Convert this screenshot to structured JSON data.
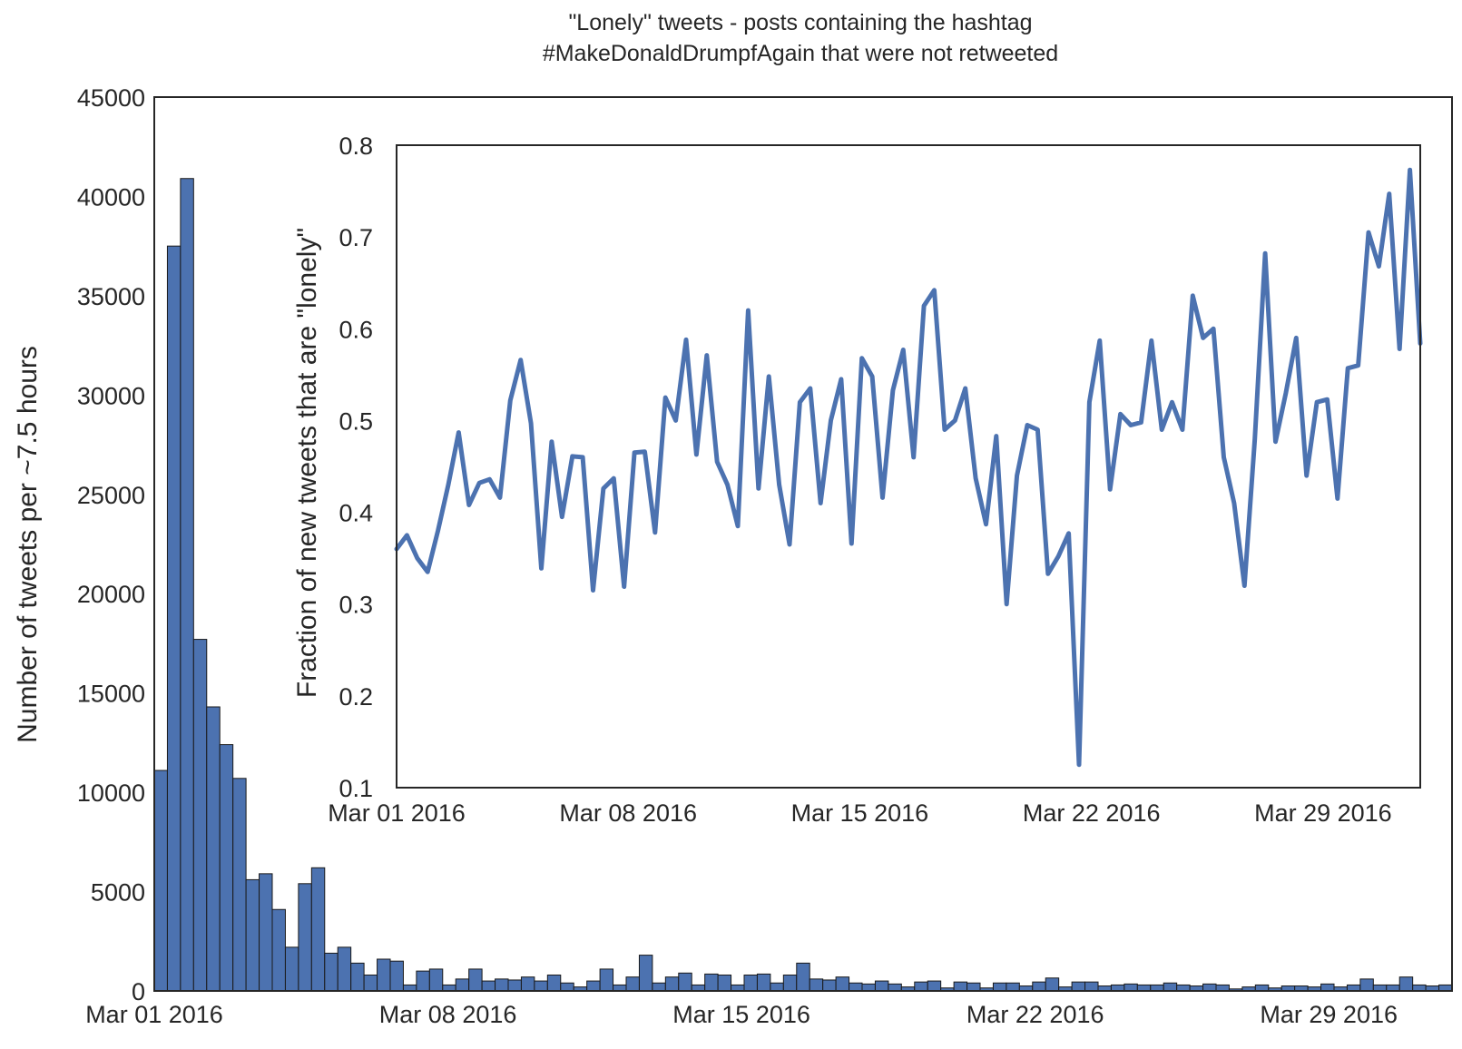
{
  "title_line1": "\"Lonely\" tweets - posts containing the hashtag",
  "title_line2": "#MakeDonaldDrumpfAgain that were not retweeted",
  "chart_data": [
    {
      "type": "bar",
      "role": "histogram",
      "ylabel": "Number of tweets per ~7.5 hours",
      "ylim": [
        0,
        45000
      ],
      "yticks": [
        "0",
        "5000",
        "10000",
        "15000",
        "20000",
        "25000",
        "30000",
        "35000",
        "40000",
        "45000"
      ],
      "xticks": [
        "Mar 01 2016",
        "Mar 08 2016",
        "Mar 15 2016",
        "Mar 22 2016",
        "Mar 29 2016"
      ],
      "bar_color": "#4c72b0",
      "values": [
        11100,
        37500,
        40900,
        17700,
        14300,
        12400,
        10700,
        5600,
        5900,
        4100,
        2200,
        5400,
        6200,
        1900,
        2200,
        1400,
        800,
        1600,
        1500,
        300,
        1000,
        1100,
        300,
        600,
        1100,
        500,
        600,
        550,
        700,
        500,
        800,
        400,
        200,
        500,
        1100,
        300,
        700,
        1800,
        400,
        700,
        900,
        300,
        850,
        800,
        300,
        800,
        850,
        400,
        800,
        1400,
        600,
        550,
        700,
        400,
        350,
        500,
        350,
        200,
        450,
        500,
        150,
        450,
        400,
        150,
        400,
        400,
        250,
        450,
        650,
        200,
        450,
        450,
        250,
        300,
        350,
        300,
        300,
        400,
        300,
        250,
        350,
        300,
        100,
        200,
        300,
        150,
        250,
        250,
        200,
        350,
        200,
        300,
        600,
        300,
        300,
        700,
        300,
        250,
        300
      ]
    },
    {
      "type": "line",
      "role": "inset",
      "ylabel": "Fraction of new tweets that are \"lonely\"",
      "ylim": [
        0.1,
        0.8
      ],
      "yticks": [
        "0.1",
        "0.2",
        "0.3",
        "0.4",
        "0.5",
        "0.6",
        "0.7",
        "0.8"
      ],
      "xticks": [
        "Mar 01 2016",
        "Mar 08 2016",
        "Mar 15 2016",
        "Mar 22 2016",
        "Mar 29 2016"
      ],
      "line_color": "#4c72b0",
      "values": [
        0.36,
        0.375,
        0.35,
        0.335,
        0.38,
        0.43,
        0.487,
        0.408,
        0.432,
        0.436,
        0.416,
        0.522,
        0.566,
        0.497,
        0.339,
        0.477,
        0.395,
        0.461,
        0.46,
        0.315,
        0.426,
        0.437,
        0.319,
        0.465,
        0.466,
        0.378,
        0.525,
        0.5,
        0.588,
        0.463,
        0.571,
        0.455,
        0.43,
        0.385,
        0.62,
        0.426,
        0.548,
        0.43,
        0.365,
        0.52,
        0.535,
        0.41,
        0.5,
        0.545,
        0.366,
        0.568,
        0.548,
        0.416,
        0.533,
        0.577,
        0.46,
        0.625,
        0.642,
        0.49,
        0.5,
        0.535,
        0.437,
        0.387,
        0.483,
        0.3,
        0.44,
        0.495,
        0.49,
        0.333,
        0.352,
        0.377,
        0.125,
        0.52,
        0.587,
        0.425,
        0.507,
        0.495,
        0.498,
        0.587,
        0.49,
        0.52,
        0.49,
        0.636,
        0.59,
        0.6,
        0.46,
        0.41,
        0.32,
        0.48,
        0.682,
        0.477,
        0.53,
        0.59,
        0.44,
        0.52,
        0.523,
        0.415,
        0.557,
        0.56,
        0.705,
        0.668,
        0.747,
        0.578,
        0.773,
        0.584
      ]
    }
  ]
}
